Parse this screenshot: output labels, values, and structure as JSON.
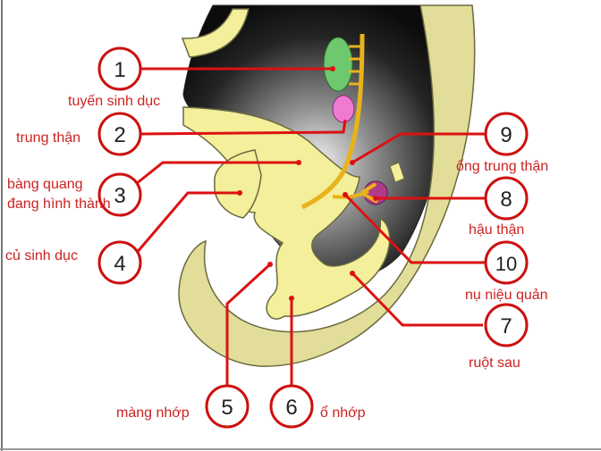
{
  "colors": {
    "label": "#cc2222",
    "leader_line": "#dd1111",
    "circle_stroke": "#cc1111",
    "tissue": "#f3ef9a",
    "hindgut_wall": "#e2dd98",
    "tissue_outline": "#6a6a40",
    "cavity_dark": "#111111",
    "gonad": "#6ec86e",
    "mesonephros": "#f07ad2",
    "metanephros": "#b23a8a",
    "duct": "#e9b21a"
  },
  "callouts": [
    {
      "number": "1",
      "label": "tuyến sinh dục"
    },
    {
      "number": "2",
      "label": "trung thận"
    },
    {
      "number": "3",
      "label": "bàng quang",
      "label2": "đang hình thành"
    },
    {
      "number": "4",
      "label": "củ sinh dục"
    },
    {
      "number": "5",
      "label": "màng nhớp"
    },
    {
      "number": "6",
      "label": "ổ nhớp"
    },
    {
      "number": "7",
      "label": "ruột sau"
    },
    {
      "number": "8",
      "label": "hậu thận"
    },
    {
      "number": "9",
      "label": "ống trung thận"
    },
    {
      "number": "10",
      "label": "nụ niệu quản"
    }
  ]
}
